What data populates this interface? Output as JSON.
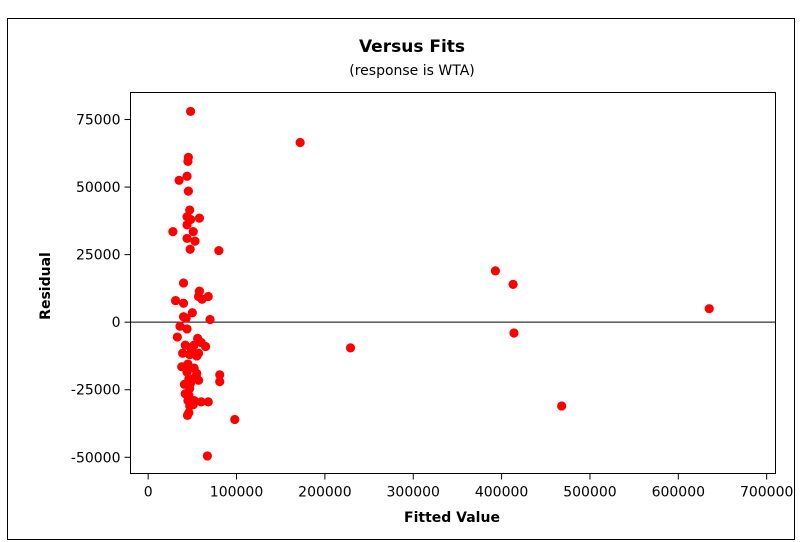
{
  "chart_data": {
    "type": "scatter",
    "title": "Versus Fits",
    "subtitle": "(response is WTA)",
    "xlabel": "Fitted Value",
    "ylabel": "Residual",
    "xlim": [
      -20000,
      710000
    ],
    "ylim": [
      -56000,
      85000
    ],
    "xticks": [
      0,
      100000,
      200000,
      300000,
      400000,
      500000,
      600000,
      700000
    ],
    "yticks": [
      -50000,
      -25000,
      0,
      25000,
      50000,
      75000
    ],
    "reference_line_y": 0,
    "grid": false,
    "marker_color": "#ff0000",
    "points": [
      [
        48000,
        78000
      ],
      [
        45500,
        61000
      ],
      [
        45000,
        59500
      ],
      [
        44000,
        54000
      ],
      [
        35000,
        52500
      ],
      [
        45500,
        48500
      ],
      [
        47000,
        41500
      ],
      [
        44000,
        39000
      ],
      [
        48000,
        38000
      ],
      [
        58000,
        38500
      ],
      [
        44000,
        36000
      ],
      [
        51000,
        33500
      ],
      [
        28000,
        33500
      ],
      [
        44000,
        31000
      ],
      [
        53000,
        30000
      ],
      [
        47500,
        27000
      ],
      [
        80000,
        26500
      ],
      [
        40000,
        14500
      ],
      [
        58000,
        11500
      ],
      [
        57000,
        9500
      ],
      [
        61000,
        8500
      ],
      [
        68000,
        9500
      ],
      [
        31000,
        8000
      ],
      [
        40000,
        7000
      ],
      [
        50000,
        3500
      ],
      [
        40000,
        2000
      ],
      [
        43000,
        1500
      ],
      [
        70000,
        1000
      ],
      [
        36000,
        -1500
      ],
      [
        44000,
        -2500
      ],
      [
        33000,
        -5500
      ],
      [
        56000,
        -6000
      ],
      [
        60000,
        -7500
      ],
      [
        42000,
        -8500
      ],
      [
        48000,
        -9500
      ],
      [
        52000,
        -8500
      ],
      [
        65000,
        -9000
      ],
      [
        39000,
        -11500
      ],
      [
        47000,
        -12000
      ],
      [
        50000,
        -11000
      ],
      [
        55000,
        -12500
      ],
      [
        57000,
        -11500
      ],
      [
        38000,
        -16500
      ],
      [
        45000,
        -15500
      ],
      [
        52000,
        -17000
      ],
      [
        44000,
        -18500
      ],
      [
        55000,
        -19000
      ],
      [
        46000,
        -21000
      ],
      [
        53000,
        -20500
      ],
      [
        57000,
        -21500
      ],
      [
        41000,
        -23000
      ],
      [
        48000,
        -22500
      ],
      [
        47000,
        -24500
      ],
      [
        42000,
        -26500
      ],
      [
        46000,
        -27000
      ],
      [
        45000,
        -29000
      ],
      [
        52000,
        -29000
      ],
      [
        60000,
        -29500
      ],
      [
        68000,
        -29500
      ],
      [
        47000,
        -31000
      ],
      [
        51000,
        -30500
      ],
      [
        46000,
        -33500
      ],
      [
        44500,
        -34500
      ],
      [
        81000,
        -19500
      ],
      [
        81000,
        -22000
      ],
      [
        98000,
        -36000
      ],
      [
        67000,
        -49500
      ],
      [
        172000,
        66500
      ],
      [
        229000,
        -9500
      ],
      [
        393000,
        19000
      ],
      [
        413000,
        14000
      ],
      [
        414000,
        -4000
      ],
      [
        468000,
        -31000
      ],
      [
        635000,
        5000
      ]
    ]
  }
}
